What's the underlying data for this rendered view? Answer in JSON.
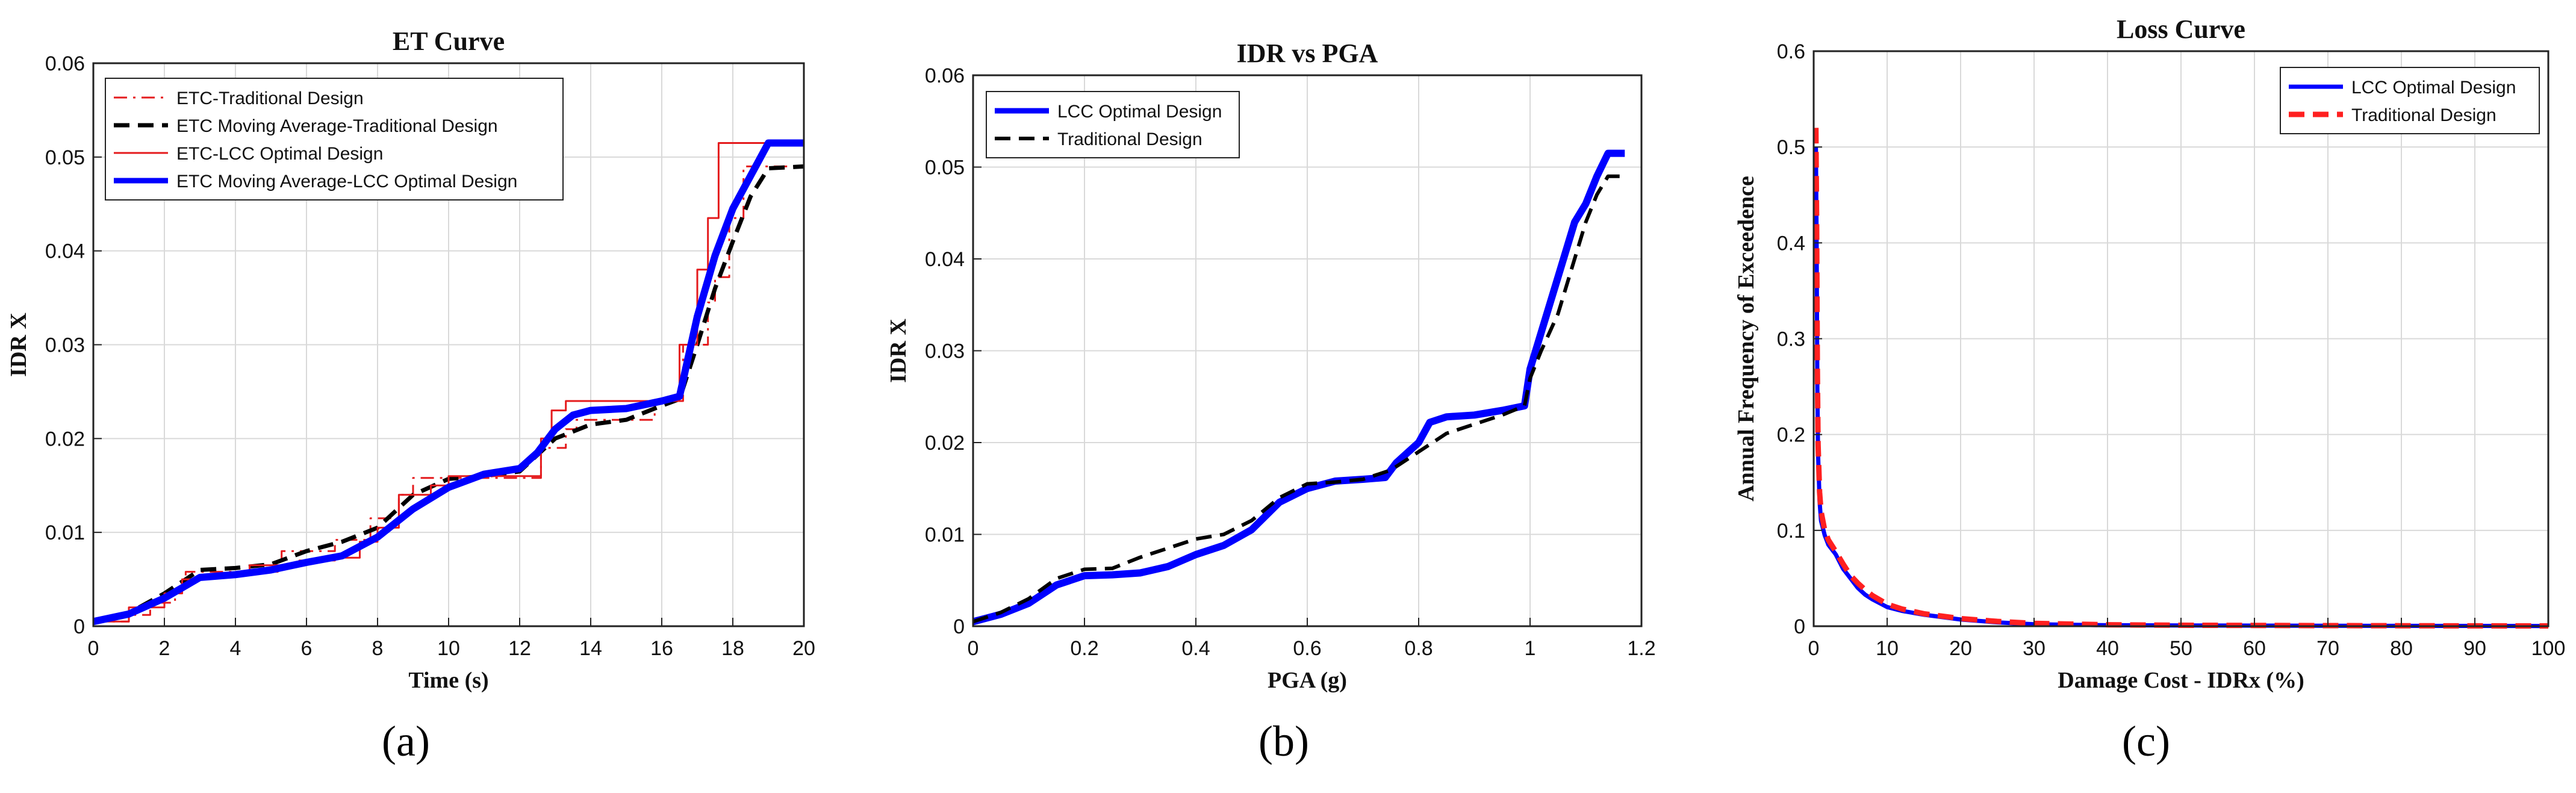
{
  "chart_data": [
    {
      "type": "line",
      "title": "ET Curve",
      "xlabel": "Time (s)",
      "ylabel": "IDR X",
      "xlim": [
        0,
        20
      ],
      "ylim": [
        0,
        0.06
      ],
      "xticks": [
        0,
        2,
        4,
        6,
        8,
        10,
        12,
        14,
        16,
        18,
        20
      ],
      "xtick_labels": [
        "0",
        "2",
        "4",
        "6",
        "8",
        "10",
        "12",
        "14",
        "16",
        "18",
        "20"
      ],
      "yticks": [
        0,
        0.01,
        0.02,
        0.03,
        0.04,
        0.05,
        0.06
      ],
      "ytick_labels": [
        "0",
        "0.01",
        "0.02",
        "0.03",
        "0.04",
        "0.05",
        "0.06"
      ],
      "grid": true,
      "legend_position": "top-left",
      "caption": "(a)",
      "series": [
        {
          "name": "ETC-Traditional Design",
          "color": "#e41a1c",
          "style": "dashdot",
          "width": 3,
          "x": [
            0,
            1.0,
            1.0,
            1.6,
            1.6,
            2.3,
            2.3,
            2.6,
            2.6,
            5.3,
            5.3,
            6.8,
            6.8,
            7.8,
            7.8,
            8.6,
            8.6,
            9.0,
            9.0,
            12.6,
            12.6,
            13.3,
            13.3,
            13.6,
            13.6,
            15.8,
            15.8,
            16.6,
            16.6,
            17.3,
            17.3,
            17.5,
            17.5,
            17.9,
            17.9,
            18.3,
            18.3,
            19.1,
            19.1,
            20
          ],
          "y": [
            0.0005,
            0.0005,
            0.0012,
            0.0012,
            0.0025,
            0.0025,
            0.004,
            0.004,
            0.0058,
            0.0058,
            0.008,
            0.008,
            0.0092,
            0.0092,
            0.0115,
            0.0115,
            0.014,
            0.014,
            0.0158,
            0.0158,
            0.019,
            0.019,
            0.021,
            0.021,
            0.022,
            0.022,
            0.024,
            0.024,
            0.03,
            0.03,
            0.0345,
            0.0345,
            0.0372,
            0.0372,
            0.0435,
            0.0435,
            0.049,
            0.049,
            0.049,
            0.049
          ]
        },
        {
          "name": "ETC Moving Average-Traditional Design",
          "color": "#000000",
          "style": "dash",
          "width": 7,
          "x": [
            0,
            1,
            2,
            3,
            4,
            5,
            6,
            7,
            8,
            9,
            10,
            11,
            12,
            13,
            14,
            15,
            16,
            16.5,
            17,
            17.5,
            18,
            18.5,
            19,
            20
          ],
          "y": [
            0.0005,
            0.0014,
            0.0035,
            0.006,
            0.0062,
            0.0066,
            0.008,
            0.009,
            0.0105,
            0.014,
            0.0157,
            0.016,
            0.0165,
            0.02,
            0.0215,
            0.022,
            0.0235,
            0.0242,
            0.03,
            0.036,
            0.041,
            0.0458,
            0.0488,
            0.049
          ]
        },
        {
          "name": "ETC-LCC Optimal Design",
          "color": "#e41a1c",
          "style": "solid",
          "width": 3,
          "x": [
            0,
            1.0,
            1.0,
            2.0,
            2.0,
            2.5,
            2.5,
            3.2,
            3.2,
            4.4,
            4.4,
            5.8,
            5.8,
            6.8,
            6.8,
            7.5,
            7.5,
            8.0,
            8.0,
            8.6,
            8.6,
            9.5,
            9.5,
            10.0,
            10.0,
            12.6,
            12.6,
            12.9,
            12.9,
            13.3,
            13.3,
            16.5,
            16.5,
            17.0,
            17.0,
            17.3,
            17.3,
            17.6,
            17.6,
            18.3,
            18.3,
            19.2,
            19.2,
            20
          ],
          "y": [
            0.0005,
            0.0005,
            0.002,
            0.002,
            0.0035,
            0.0035,
            0.005,
            0.005,
            0.0055,
            0.0055,
            0.0065,
            0.0065,
            0.007,
            0.007,
            0.0073,
            0.0073,
            0.009,
            0.009,
            0.0105,
            0.0105,
            0.014,
            0.014,
            0.015,
            0.015,
            0.016,
            0.016,
            0.02,
            0.02,
            0.023,
            0.023,
            0.024,
            0.024,
            0.03,
            0.03,
            0.038,
            0.038,
            0.0435,
            0.0435,
            0.0515,
            0.0515,
            0.0515,
            0.0515,
            0.0515,
            0.0515
          ]
        },
        {
          "name": "ETC Moving Average-LCC Optimal Design",
          "color": "#0000ff",
          "style": "solid",
          "width": 12,
          "x": [
            0,
            1,
            2,
            3,
            4,
            5,
            6,
            7,
            8,
            9,
            10,
            11,
            12,
            12.5,
            13,
            13.5,
            14,
            15,
            16,
            16.5,
            17,
            17.5,
            18,
            18.5,
            19,
            20
          ],
          "y": [
            0.0005,
            0.0013,
            0.003,
            0.0052,
            0.0055,
            0.006,
            0.0068,
            0.0075,
            0.0095,
            0.0125,
            0.0148,
            0.0162,
            0.0168,
            0.0185,
            0.021,
            0.0225,
            0.023,
            0.0232,
            0.024,
            0.0245,
            0.033,
            0.0395,
            0.0445,
            0.048,
            0.0515,
            0.0515
          ]
        }
      ]
    },
    {
      "type": "line",
      "title": "IDR vs PGA",
      "xlabel": "PGA (g)",
      "ylabel": "IDR X",
      "xlim": [
        0,
        1.2
      ],
      "ylim": [
        0,
        0.06
      ],
      "xticks": [
        0,
        0.2,
        0.4,
        0.6,
        0.8,
        1.0,
        1.2
      ],
      "xtick_labels": [
        "0",
        "0.2",
        "0.4",
        "0.6",
        "0.8",
        "1",
        "1.2"
      ],
      "yticks": [
        0,
        0.01,
        0.02,
        0.03,
        0.04,
        0.05,
        0.06
      ],
      "ytick_labels": [
        "0",
        "0.01",
        "0.02",
        "0.03",
        "0.04",
        "0.05",
        "0.06"
      ],
      "grid": true,
      "legend_position": "top-left",
      "caption": "(b)",
      "series": [
        {
          "name": "LCC Optimal Design",
          "color": "#0000ff",
          "style": "solid",
          "width": 12,
          "x": [
            0,
            0.05,
            0.1,
            0.15,
            0.2,
            0.25,
            0.3,
            0.35,
            0.4,
            0.45,
            0.5,
            0.55,
            0.6,
            0.65,
            0.7,
            0.74,
            0.76,
            0.8,
            0.82,
            0.85,
            0.9,
            0.95,
            0.99,
            1.0,
            1.02,
            1.05,
            1.08,
            1.1,
            1.12,
            1.14,
            1.17
          ],
          "y": [
            0.0005,
            0.0013,
            0.0025,
            0.0045,
            0.0055,
            0.0056,
            0.0058,
            0.0065,
            0.0078,
            0.0088,
            0.0105,
            0.0135,
            0.015,
            0.0158,
            0.016,
            0.0162,
            0.0178,
            0.02,
            0.0222,
            0.0228,
            0.023,
            0.0235,
            0.024,
            0.028,
            0.032,
            0.038,
            0.044,
            0.046,
            0.049,
            0.0515,
            0.0515
          ]
        },
        {
          "name": "Traditional Design",
          "color": "#000000",
          "style": "dash",
          "width": 6,
          "x": [
            0,
            0.05,
            0.1,
            0.15,
            0.2,
            0.25,
            0.3,
            0.35,
            0.4,
            0.45,
            0.5,
            0.55,
            0.6,
            0.65,
            0.7,
            0.75,
            0.8,
            0.85,
            0.9,
            0.95,
            0.99,
            1.0,
            1.02,
            1.05,
            1.08,
            1.1,
            1.12,
            1.14,
            1.17
          ],
          "y": [
            0.0005,
            0.0015,
            0.003,
            0.0052,
            0.0062,
            0.0063,
            0.0075,
            0.0085,
            0.0095,
            0.01,
            0.0115,
            0.014,
            0.0155,
            0.0157,
            0.016,
            0.017,
            0.019,
            0.021,
            0.022,
            0.023,
            0.024,
            0.027,
            0.03,
            0.034,
            0.04,
            0.044,
            0.047,
            0.049,
            0.049
          ]
        }
      ]
    },
    {
      "type": "line",
      "title": "Loss Curve",
      "xlabel": "Damage Cost - IDRx (%)",
      "ylabel": "Annual Frequency of Exceedence",
      "xlim": [
        0,
        100
      ],
      "ylim": [
        0,
        0.6
      ],
      "xticks": [
        0,
        10,
        20,
        30,
        40,
        50,
        60,
        70,
        80,
        90,
        100
      ],
      "xtick_labels": [
        "0",
        "10",
        "20",
        "30",
        "40",
        "50",
        "60",
        "70",
        "80",
        "90",
        "100"
      ],
      "yticks": [
        0,
        0.1,
        0.2,
        0.3,
        0.4,
        0.5,
        0.6
      ],
      "ytick_labels": [
        "0",
        "0.1",
        "0.2",
        "0.3",
        "0.4",
        "0.5",
        "0.6"
      ],
      "grid": true,
      "legend_position": "top-right",
      "caption": "(c)",
      "series": [
        {
          "name": "LCC Optimal Design",
          "color": "#0000ff",
          "style": "solid",
          "width": 7,
          "x": [
            0.3,
            0.4,
            0.5,
            0.6,
            0.8,
            1.0,
            1.5,
            2.0,
            3.0,
            4.0,
            5.0,
            6.0,
            7.0,
            8.0,
            10.0,
            12.0,
            15.0,
            20.0,
            25.0,
            30.0,
            40.0,
            50.0,
            60.0,
            70.0,
            80.0,
            90.0,
            100.0
          ],
          "y": [
            0.5,
            0.4,
            0.25,
            0.18,
            0.13,
            0.11,
            0.095,
            0.085,
            0.075,
            0.06,
            0.05,
            0.04,
            0.033,
            0.028,
            0.02,
            0.016,
            0.012,
            0.007,
            0.004,
            0.002,
            0.001,
            0.0008,
            0.0006,
            0.0005,
            0.0004,
            0.0003,
            0.0002
          ]
        },
        {
          "name": "Traditional Design",
          "color": "#ff2020",
          "style": "dash",
          "width": 9,
          "x": [
            0.3,
            0.4,
            0.5,
            0.6,
            0.8,
            1.0,
            1.5,
            2.0,
            3.0,
            4.0,
            5.0,
            6.0,
            7.0,
            8.0,
            10.0,
            12.0,
            15.0,
            20.0,
            25.0,
            30.0,
            40.0,
            50.0,
            60.0,
            70.0,
            80.0,
            90.0,
            100.0
          ],
          "y": [
            0.52,
            0.42,
            0.27,
            0.19,
            0.14,
            0.12,
            0.1,
            0.09,
            0.078,
            0.065,
            0.053,
            0.045,
            0.038,
            0.032,
            0.023,
            0.018,
            0.013,
            0.008,
            0.005,
            0.003,
            0.0015,
            0.001,
            0.0008,
            0.0006,
            0.0005,
            0.0004,
            0.0003
          ]
        }
      ]
    }
  ]
}
